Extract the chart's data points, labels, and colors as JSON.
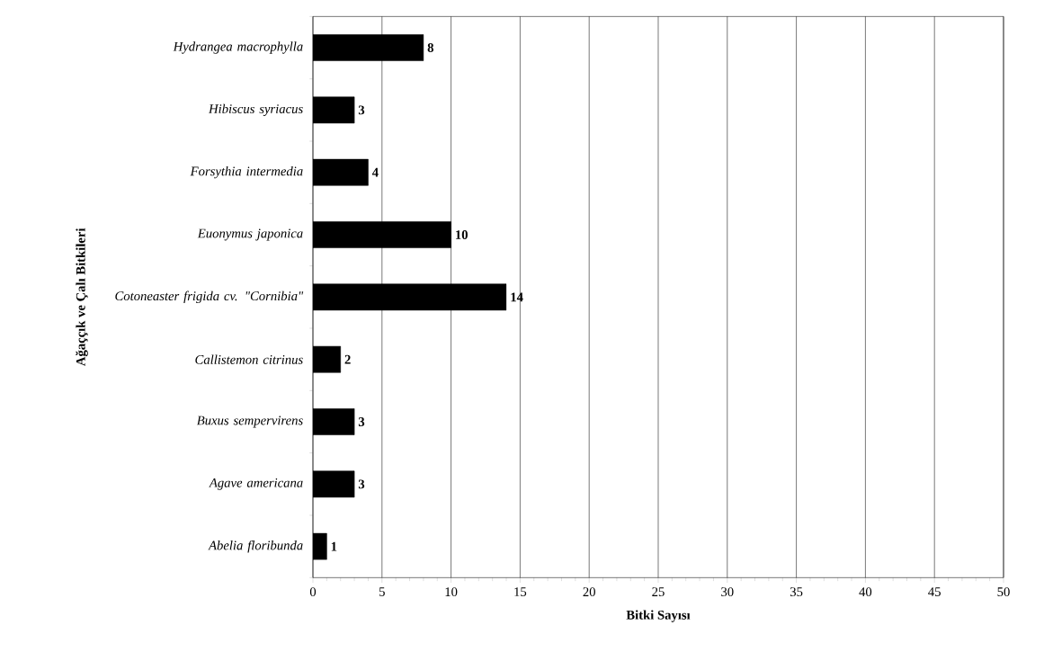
{
  "chart_data": {
    "type": "bar",
    "orientation": "horizontal",
    "xlabel": "Bitki Sayısı",
    "ylabel": "Ağaççık ve Çalı Bitkileri",
    "categories": [
      "Hydrangea macrophylla",
      "Hibiscus syriacus",
      "Forsythia intermedia",
      "Euonymus japonica",
      "Cotoneaster frigida cv. \"Cornibia\"",
      "Callistemon citrinus",
      "Buxus sempervirens",
      "Agave americana",
      "Abelia floribunda"
    ],
    "values": [
      8,
      3,
      4,
      10,
      14,
      2,
      3,
      3,
      1
    ],
    "color": "#000000",
    "data_labels": true,
    "grid": "x",
    "xlim": [
      0,
      50
    ],
    "xticks": [
      0,
      5,
      10,
      15,
      20,
      25,
      30,
      35,
      40,
      45,
      50
    ]
  }
}
